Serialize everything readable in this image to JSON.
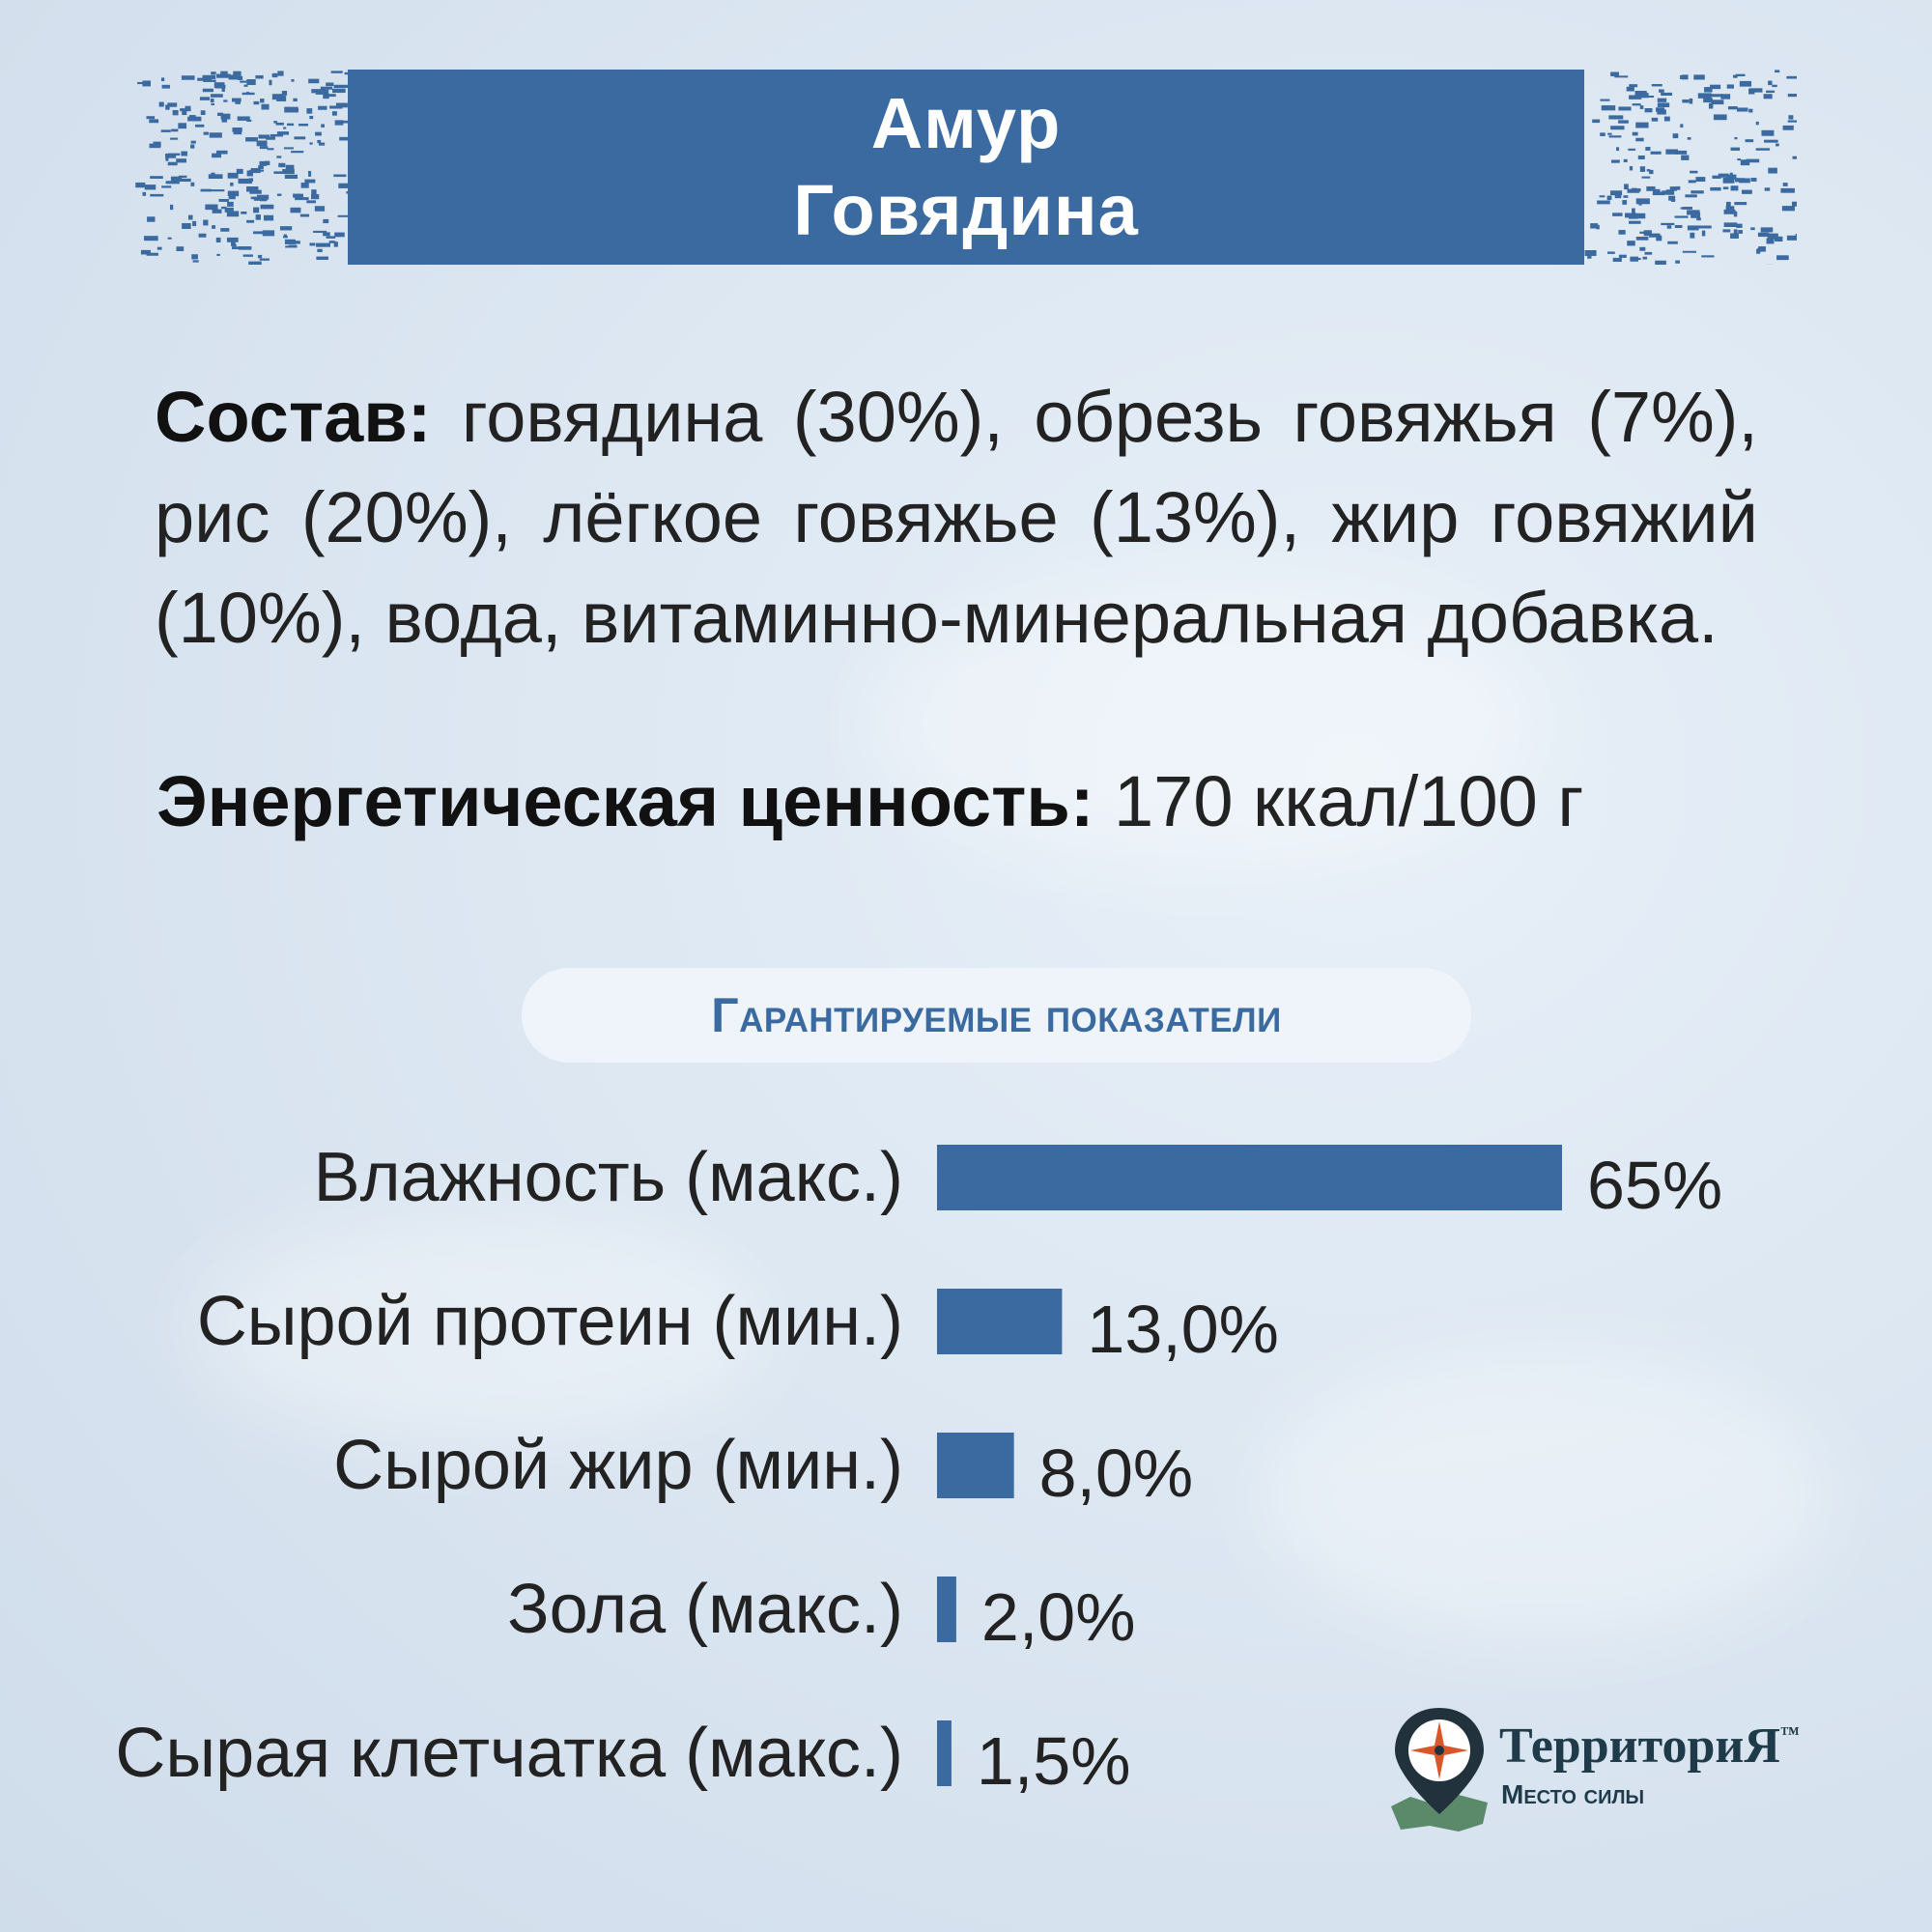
{
  "header": {
    "title_line1": "Амур",
    "title_line2": "Говядина",
    "color": "#3a6aa0"
  },
  "composition": {
    "label": "Состав:",
    "text": " говядина (30%), обрезь говяжья (7%), рис (20%), лёгкое говяжье (13%), жир говяжий (10%), вода, витаминно-минеральная добавка."
  },
  "energy": {
    "label": "Энергетическая ценность:",
    "value": " 170 ккал/100 г"
  },
  "guaranteed_header": "Гарантируемые показатели",
  "logo": {
    "icon": "compass-map-pin-icon",
    "name": "ТерриториЯ",
    "tm": "™",
    "subtitle": "Место силы"
  },
  "chart_data": {
    "type": "bar",
    "orientation": "horizontal",
    "categories": [
      "Влажность (макс.)",
      "Сырой протеин (мин.)",
      "Сырой жир (мин.)",
      "Зола (макс.)",
      "Сырая клетчатка (макс.)"
    ],
    "values": [
      65,
      13.0,
      8.0,
      2.0,
      1.5
    ],
    "value_labels": [
      "65%",
      "13,0%",
      "8,0%",
      "2,0%",
      "1,5%"
    ],
    "bar_color": "#3a6aa0",
    "grid": false
  }
}
